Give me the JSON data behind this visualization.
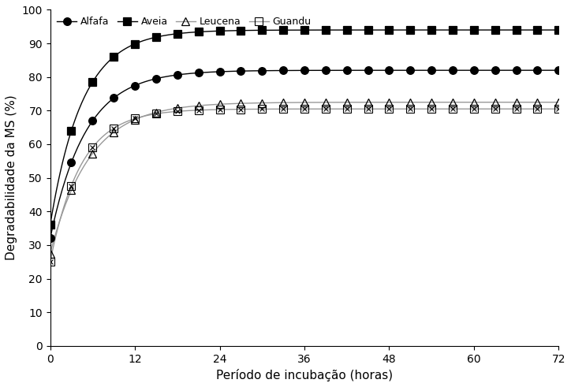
{
  "title": "",
  "xlabel": "Período de incubação (horas)",
  "ylabel": "Degradabilidade da MS (%)",
  "xlim": [
    0,
    72
  ],
  "ylim": [
    0,
    100
  ],
  "xticks": [
    0,
    12,
    24,
    36,
    48,
    60,
    72
  ],
  "yticks": [
    0,
    10,
    20,
    30,
    40,
    50,
    60,
    70,
    80,
    90,
    100
  ],
  "series": [
    {
      "label": "Alfafa",
      "color": "#000000",
      "line_color": "#000000",
      "marker": "o",
      "marker_fill": "black",
      "a": 32.0,
      "b": 50.0,
      "c": 0.2
    },
    {
      "label": "Aveia",
      "color": "#000000",
      "line_color": "#000000",
      "marker": "s",
      "marker_fill": "black",
      "a": 36.0,
      "b": 58.0,
      "c": 0.22
    },
    {
      "label": "Leucena",
      "color": "#000000",
      "line_color": "#999999",
      "marker": "^",
      "marker_fill": "none",
      "a": 27.5,
      "b": 45.0,
      "c": 0.18
    },
    {
      "label": "Guandu",
      "color": "#000000",
      "line_color": "#999999",
      "marker": "x_box",
      "marker_fill": "none",
      "a": 25.0,
      "b": 45.5,
      "c": 0.23
    }
  ],
  "time_points": [
    0,
    2,
    4,
    6,
    8,
    10,
    12,
    14,
    16,
    18,
    20,
    22,
    24,
    26,
    28,
    30,
    32,
    34,
    36,
    38,
    40,
    42,
    44,
    46,
    48,
    50,
    52,
    54,
    56,
    58,
    60,
    62,
    64,
    66,
    68,
    70,
    72
  ],
  "marker_time_points": [
    0,
    3,
    6,
    9,
    12,
    15,
    18,
    21,
    24,
    27,
    30,
    33,
    36,
    39,
    42,
    45,
    48,
    51,
    54,
    57,
    60,
    63,
    66,
    69,
    72
  ],
  "smooth_points": 500,
  "background_color": "#ffffff",
  "legend_loc": "upper left",
  "legend_fontsize": 9,
  "axis_fontsize": 11,
  "tick_fontsize": 10
}
